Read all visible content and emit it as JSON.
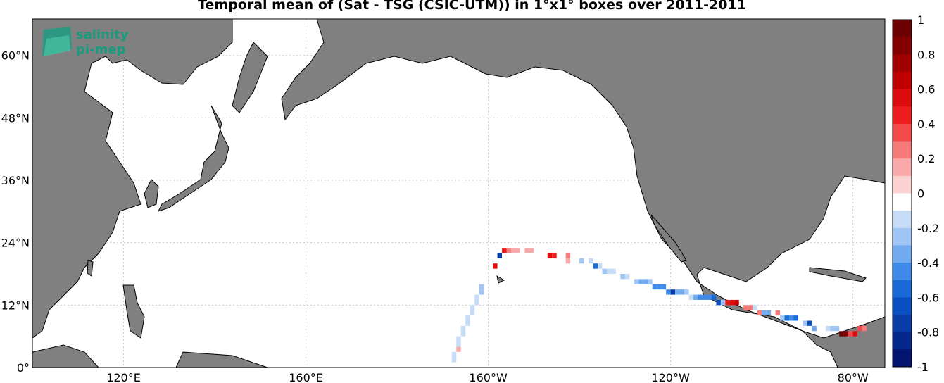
{
  "title": "Temporal mean of (Sat - TSG (CSIC-UTM)) in 1°x1° boxes over 2011-2011",
  "logo": {
    "line1": "salinity",
    "line2": "pi-mep"
  },
  "lat_ticks": [
    {
      "value": 0,
      "label": "0°"
    },
    {
      "value": 12,
      "label": "12°N"
    },
    {
      "value": 24,
      "label": "24°N"
    },
    {
      "value": 36,
      "label": "36°N"
    },
    {
      "value": 48,
      "label": "48°N"
    },
    {
      "value": 60,
      "label": "60°N"
    }
  ],
  "lon_ticks": [
    {
      "value": 120,
      "label": "120°E"
    },
    {
      "value": 160,
      "label": "160°E"
    },
    {
      "value": -160,
      "label": "160°W"
    },
    {
      "value": -120,
      "label": "120°W"
    },
    {
      "value": -80,
      "label": "80°W"
    }
  ],
  "colorbar": {
    "ticks": [
      "1",
      "0.8",
      "0.6",
      "0.4",
      "0.2",
      "0",
      "-0.2",
      "-0.4",
      "-0.6",
      "-0.8",
      "-1"
    ],
    "colors": [
      "#ffffff",
      "#c6dcf7",
      "#a0c6f5",
      "#72aaf0",
      "#3f8ae8",
      "#1a6ad6",
      "#0a4fbf",
      "#083ca6",
      "#04298a",
      "#021470",
      "#fcd2d2",
      "#f9a9a9",
      "#f57a7a",
      "#f24a4a",
      "#ee1d1d",
      "#dd0b0b",
      "#c00000",
      "#a10000",
      "#830000",
      "#6b0000"
    ]
  },
  "colors": {
    "land": "#808080",
    "ocean": "#ffffff",
    "grid": "#c8c8c8"
  },
  "chart_data": {
    "type": "heatmap",
    "title": "Temporal mean of (Sat - TSG (CSIC-UTM)) in 1°x1° boxes over 2011-2011",
    "xlabel": "",
    "ylabel": "",
    "xlim": [
      100,
      287
    ],
    "ylim": [
      0,
      67
    ],
    "clim": [
      -1,
      1
    ],
    "grid": true,
    "cells": [
      {
        "lon": -168,
        "lat": 1,
        "v": -0.1
      },
      {
        "lon": -168,
        "lat": 2,
        "v": -0.15
      },
      {
        "lon": -167,
        "lat": 3,
        "v": 0.15
      },
      {
        "lon": -167,
        "lat": 4,
        "v": -0.1
      },
      {
        "lon": -167,
        "lat": 5,
        "v": -0.1
      },
      {
        "lon": -166,
        "lat": 6,
        "v": -0.1
      },
      {
        "lon": -166,
        "lat": 7,
        "v": -0.1
      },
      {
        "lon": -165,
        "lat": 8,
        "v": -0.1
      },
      {
        "lon": -165,
        "lat": 9,
        "v": -0.15
      },
      {
        "lon": -164,
        "lat": 10,
        "v": -0.1
      },
      {
        "lon": -164,
        "lat": 11,
        "v": -0.1
      },
      {
        "lon": -163,
        "lat": 12,
        "v": -0.15
      },
      {
        "lon": -163,
        "lat": 13,
        "v": -0.15
      },
      {
        "lon": -162,
        "lat": 14,
        "v": -0.2
      },
      {
        "lon": -162,
        "lat": 15,
        "v": -0.25
      },
      {
        "lon": -159,
        "lat": 19,
        "v": 0.5
      },
      {
        "lon": -158,
        "lat": 21,
        "v": -0.7
      },
      {
        "lon": -157,
        "lat": 22,
        "v": 0.45
      },
      {
        "lon": -156,
        "lat": 22,
        "v": 0.2
      },
      {
        "lon": -155,
        "lat": 22,
        "v": 0.15
      },
      {
        "lon": -154,
        "lat": 22,
        "v": 0.15
      },
      {
        "lon": -152,
        "lat": 22,
        "v": 0.15
      },
      {
        "lon": -151,
        "lat": 22,
        "v": 0.15
      },
      {
        "lon": -147,
        "lat": 21,
        "v": 0.55
      },
      {
        "lon": -146,
        "lat": 21,
        "v": 0.45
      },
      {
        "lon": -143,
        "lat": 21,
        "v": 0.2
      },
      {
        "lon": -143,
        "lat": 20,
        "v": 0.15
      },
      {
        "lon": -140,
        "lat": 20,
        "v": -0.2
      },
      {
        "lon": -138,
        "lat": 20,
        "v": -0.15
      },
      {
        "lon": -137,
        "lat": 19,
        "v": -0.5
      },
      {
        "lon": -136,
        "lat": 19,
        "v": -0.15
      },
      {
        "lon": -135,
        "lat": 18,
        "v": -0.2
      },
      {
        "lon": -134,
        "lat": 18,
        "v": -0.15
      },
      {
        "lon": -133,
        "lat": 18,
        "v": -0.15
      },
      {
        "lon": -131,
        "lat": 17,
        "v": -0.2
      },
      {
        "lon": -130,
        "lat": 17,
        "v": -0.15
      },
      {
        "lon": -128,
        "lat": 16,
        "v": -0.25
      },
      {
        "lon": -127,
        "lat": 16,
        "v": -0.3
      },
      {
        "lon": -126,
        "lat": 16,
        "v": -0.3
      },
      {
        "lon": -125,
        "lat": 16,
        "v": -0.25
      },
      {
        "lon": -124,
        "lat": 15,
        "v": -0.4
      },
      {
        "lon": -123,
        "lat": 15,
        "v": -0.4
      },
      {
        "lon": -122,
        "lat": 15,
        "v": -0.45
      },
      {
        "lon": -121,
        "lat": 14,
        "v": -0.4
      },
      {
        "lon": -120,
        "lat": 14,
        "v": -0.75
      },
      {
        "lon": -119,
        "lat": 14,
        "v": -0.35
      },
      {
        "lon": -118,
        "lat": 14,
        "v": -0.3
      },
      {
        "lon": -117,
        "lat": 14,
        "v": -0.2
      },
      {
        "lon": -116,
        "lat": 13,
        "v": -0.15
      },
      {
        "lon": -115,
        "lat": 13,
        "v": -0.3
      },
      {
        "lon": -114,
        "lat": 13,
        "v": -0.4
      },
      {
        "lon": -113,
        "lat": 13,
        "v": -0.45
      },
      {
        "lon": -112,
        "lat": 13,
        "v": -0.45
      },
      {
        "lon": -111,
        "lat": 13,
        "v": -0.5
      },
      {
        "lon": -110,
        "lat": 12,
        "v": -0.6
      },
      {
        "lon": -109,
        "lat": 12,
        "v": -0.2
      },
      {
        "lon": -108,
        "lat": 12,
        "v": 0.45
      },
      {
        "lon": -107,
        "lat": 12,
        "v": 0.55
      },
      {
        "lon": -106,
        "lat": 12,
        "v": 0.6
      },
      {
        "lon": -104,
        "lat": 11,
        "v": 0.25
      },
      {
        "lon": -103,
        "lat": 11,
        "v": 0.2
      },
      {
        "lon": -102,
        "lat": 11,
        "v": -0.15
      },
      {
        "lon": -101,
        "lat": 10,
        "v": 0.2
      },
      {
        "lon": -100,
        "lat": 10,
        "v": -0.3
      },
      {
        "lon": -99,
        "lat": 10,
        "v": -0.35
      },
      {
        "lon": -97,
        "lat": 10,
        "v": 0.25
      },
      {
        "lon": -96,
        "lat": 9,
        "v": -0.2
      },
      {
        "lon": -95,
        "lat": 9,
        "v": -0.5
      },
      {
        "lon": -94,
        "lat": 9,
        "v": -0.45
      },
      {
        "lon": -93,
        "lat": 9,
        "v": -0.55
      },
      {
        "lon": -91,
        "lat": 8,
        "v": -0.2
      },
      {
        "lon": -90,
        "lat": 8,
        "v": -0.6
      },
      {
        "lon": -89,
        "lat": 7,
        "v": -0.3
      },
      {
        "lon": -86,
        "lat": 7,
        "v": -0.15
      },
      {
        "lon": -85,
        "lat": 7,
        "v": -0.2
      },
      {
        "lon": -84,
        "lat": 7,
        "v": -0.25
      },
      {
        "lon": -83,
        "lat": 6,
        "v": 0.95
      },
      {
        "lon": -82,
        "lat": 6,
        "v": 0.85
      },
      {
        "lon": -81,
        "lat": 6,
        "v": 0.3
      },
      {
        "lon": -80,
        "lat": 6,
        "v": 0.55
      },
      {
        "lon": -79,
        "lat": 7,
        "v": 0.3
      },
      {
        "lon": -78,
        "lat": 7,
        "v": 0.2
      }
    ]
  }
}
